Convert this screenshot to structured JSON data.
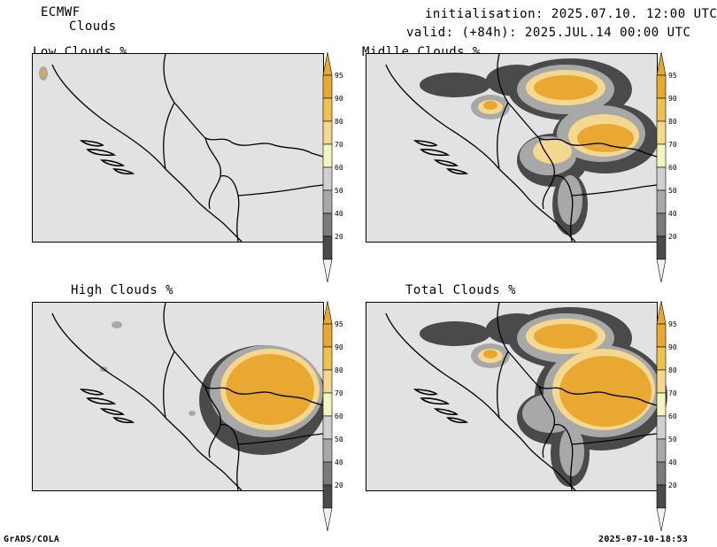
{
  "header": {
    "model": "ECMWF",
    "product": "Clouds",
    "initialisation": "initialisation: 2025.07.10. 12:00 UTC",
    "valid": "valid: (+84h): 2025.JUL.14 00:00 UTC"
  },
  "panels": [
    {
      "title": "Low Clouds %",
      "overlay": "none"
    },
    {
      "title": "Midlle Clouds %",
      "overlay": "middle"
    },
    {
      "title": "High Clouds %",
      "overlay": "high"
    },
    {
      "title": "Total Clouds %",
      "overlay": "total"
    }
  ],
  "colorbar": {
    "levels": [
      "95",
      "90",
      "80",
      "70",
      "60",
      "50",
      "40",
      "20"
    ],
    "colors": [
      "#e8a832",
      "#f0c050",
      "#f5d890",
      "#f5f5c0",
      "#d0d0d0",
      "#a8a8a8",
      "#7a7a7a",
      "#4a4a4a"
    ],
    "over_color": "#e8a832",
    "under_color": "#f0f0f0"
  },
  "footer": {
    "left": "GrADS/COLA",
    "right": "2025-07-10-18:53"
  }
}
